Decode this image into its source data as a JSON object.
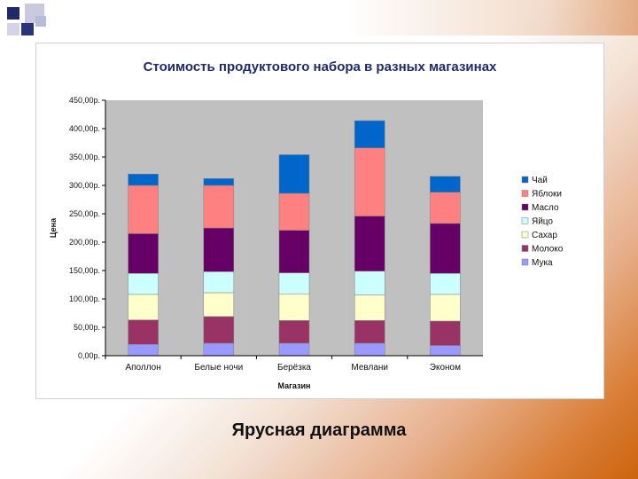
{
  "slide": {
    "caption": "Ярусная диаграмма"
  },
  "chart_data": {
    "type": "bar",
    "stacked": true,
    "title": "Стоимость продуктового набора в разных магазинах",
    "xlabel": "Магазин",
    "ylabel": "Цена",
    "categories": [
      "Аполлон",
      "Белые ночи",
      "Берёзка",
      "Мевлани",
      "Эконом"
    ],
    "ylim": [
      0,
      450
    ],
    "y_ticks": [
      0,
      50,
      100,
      150,
      200,
      250,
      300,
      350,
      400,
      450
    ],
    "y_tick_labels": [
      "0,00р.",
      "50,00р.",
      "100,00р.",
      "150,00р.",
      "200,00р.",
      "250,00р.",
      "300,00р.",
      "350,00р.",
      "400,00р.",
      "450,00р."
    ],
    "grid": false,
    "legend_position": "right",
    "series": [
      {
        "name": "Мука",
        "color": "#9999ff",
        "values": [
          20,
          22,
          22,
          22,
          18
        ]
      },
      {
        "name": "Молоко",
        "color": "#993366",
        "values": [
          43,
          47,
          40,
          40,
          43
        ]
      },
      {
        "name": "Сахар",
        "color": "#ffffcc",
        "values": [
          45,
          42,
          47,
          45,
          47
        ]
      },
      {
        "name": "Яйцо",
        "color": "#ccffff",
        "values": [
          37,
          37,
          37,
          42,
          37
        ]
      },
      {
        "name": "Масло",
        "color": "#660066",
        "values": [
          70,
          77,
          75,
          97,
          88
        ]
      },
      {
        "name": "Яблоки",
        "color": "#ff8080",
        "values": [
          85,
          75,
          65,
          120,
          55
        ]
      },
      {
        "name": "Чай",
        "color": "#0066cc",
        "values": [
          20,
          12,
          68,
          48,
          28
        ]
      }
    ]
  }
}
